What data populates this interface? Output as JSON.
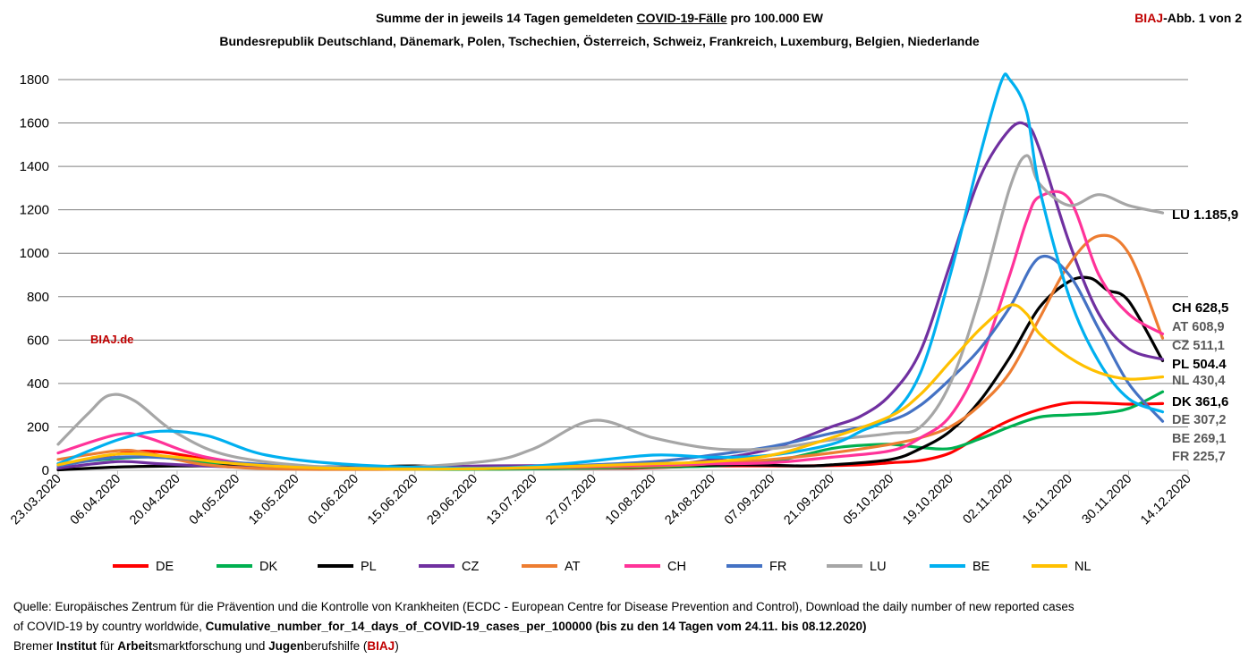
{
  "header": {
    "title_pre": "Summe der in jeweils 14 Tagen gemeldeten ",
    "title_underlined": "COVID-19-Fälle",
    "title_post": " pro 100.000 EW",
    "subtitle": "Bundesrepublik Deutschland, Dänemark, Polen, Tschechien, Österreich, Schweiz, Frankreich, Luxemburg, Belgien, Niederlande",
    "abb_brand": "BIAJ",
    "abb_text": "-Abb. 1 von 2",
    "watermark": "BIAJ.de"
  },
  "colors": {
    "DE": "#ff0000",
    "DK": "#00b050",
    "PL": "#000000",
    "CZ": "#7030a0",
    "AT": "#ed7d31",
    "CH": "#ff3399",
    "FR": "#4472c4",
    "LU": "#a6a6a6",
    "BE": "#00b0f0",
    "NL": "#ffc000",
    "brand": "#c00000"
  },
  "chart_data": {
    "type": "line",
    "title": "Summe der in jeweils 14 Tagen gemeldeten COVID-19-Fälle pro 100.000 EW",
    "xlabel": "",
    "ylabel": "",
    "ylim": [
      0,
      1800
    ],
    "yticks": [
      0,
      200,
      400,
      600,
      800,
      1000,
      1200,
      1400,
      1600,
      1800
    ],
    "xlim": [
      "2020-03-23",
      "2020-12-14"
    ],
    "xticks": [
      "23.03.2020",
      "06.04.2020",
      "20.04.2020",
      "04.05.2020",
      "18.05.2020",
      "01.06.2020",
      "15.06.2020",
      "29.06.2020",
      "13.07.2020",
      "27.07.2020",
      "10.08.2020",
      "24.08.2020",
      "07.09.2020",
      "21.09.2020",
      "05.10.2020",
      "19.10.2020",
      "02.11.2020",
      "16.11.2020",
      "30.11.2020",
      "14.12.2020"
    ],
    "grid": true,
    "legend_position": "bottom",
    "series": [
      {
        "name": "DE",
        "points": [
          [
            "2020-03-23",
            25
          ],
          [
            "2020-04-06",
            75
          ],
          [
            "2020-04-16",
            85
          ],
          [
            "2020-05-04",
            30
          ],
          [
            "2020-05-25",
            10
          ],
          [
            "2020-07-01",
            8
          ],
          [
            "2020-08-05",
            10
          ],
          [
            "2020-08-24",
            20
          ],
          [
            "2020-09-14",
            20
          ],
          [
            "2020-09-28",
            25
          ],
          [
            "2020-10-05",
            35
          ],
          [
            "2020-10-12",
            45
          ],
          [
            "2020-10-19",
            80
          ],
          [
            "2020-10-26",
            160
          ],
          [
            "2020-11-02",
            230
          ],
          [
            "2020-11-09",
            280
          ],
          [
            "2020-11-16",
            310
          ],
          [
            "2020-11-23",
            310
          ],
          [
            "2020-11-30",
            305
          ],
          [
            "2020-12-08",
            307.2
          ]
        ]
      },
      {
        "name": "DK",
        "points": [
          [
            "2020-03-23",
            30
          ],
          [
            "2020-04-06",
            55
          ],
          [
            "2020-04-16",
            60
          ],
          [
            "2020-04-27",
            35
          ],
          [
            "2020-05-18",
            10
          ],
          [
            "2020-07-01",
            5
          ],
          [
            "2020-08-10",
            15
          ],
          [
            "2020-08-24",
            20
          ],
          [
            "2020-09-07",
            40
          ],
          [
            "2020-09-21",
            100
          ],
          [
            "2020-09-28",
            115
          ],
          [
            "2020-10-05",
            120
          ],
          [
            "2020-10-12",
            105
          ],
          [
            "2020-10-19",
            100
          ],
          [
            "2020-10-26",
            145
          ],
          [
            "2020-11-02",
            200
          ],
          [
            "2020-11-09",
            245
          ],
          [
            "2020-11-16",
            255
          ],
          [
            "2020-11-23",
            262
          ],
          [
            "2020-11-30",
            285
          ],
          [
            "2020-12-08",
            361.6
          ]
        ]
      },
      {
        "name": "PL",
        "points": [
          [
            "2020-03-23",
            2
          ],
          [
            "2020-04-06",
            15
          ],
          [
            "2020-04-20",
            20
          ],
          [
            "2020-05-10",
            20
          ],
          [
            "2020-05-31",
            15
          ],
          [
            "2020-06-15",
            20
          ],
          [
            "2020-07-01",
            10
          ],
          [
            "2020-08-10",
            20
          ],
          [
            "2020-08-31",
            25
          ],
          [
            "2020-09-14",
            20
          ],
          [
            "2020-09-21",
            25
          ],
          [
            "2020-10-05",
            50
          ],
          [
            "2020-10-12",
            100
          ],
          [
            "2020-10-19",
            180
          ],
          [
            "2020-10-26",
            320
          ],
          [
            "2020-11-02",
            520
          ],
          [
            "2020-11-09",
            750
          ],
          [
            "2020-11-16",
            870
          ],
          [
            "2020-11-21",
            885
          ],
          [
            "2020-11-25",
            830
          ],
          [
            "2020-11-30",
            780
          ],
          [
            "2020-12-08",
            504.4
          ]
        ]
      },
      {
        "name": "CZ",
        "points": [
          [
            "2020-03-23",
            10
          ],
          [
            "2020-04-06",
            40
          ],
          [
            "2020-04-16",
            30
          ],
          [
            "2020-05-04",
            15
          ],
          [
            "2020-06-01",
            10
          ],
          [
            "2020-07-01",
            20
          ],
          [
            "2020-08-10",
            25
          ],
          [
            "2020-08-24",
            50
          ],
          [
            "2020-09-07",
            100
          ],
          [
            "2020-09-21",
            200
          ],
          [
            "2020-09-28",
            250
          ],
          [
            "2020-10-05",
            350
          ],
          [
            "2020-10-12",
            550
          ],
          [
            "2020-10-19",
            950
          ],
          [
            "2020-10-26",
            1350
          ],
          [
            "2020-11-02",
            1570
          ],
          [
            "2020-11-06",
            1590
          ],
          [
            "2020-11-09",
            1480
          ],
          [
            "2020-11-16",
            1050
          ],
          [
            "2020-11-23",
            720
          ],
          [
            "2020-11-30",
            560
          ],
          [
            "2020-12-08",
            511.1
          ]
        ]
      },
      {
        "name": "AT",
        "points": [
          [
            "2020-03-23",
            50
          ],
          [
            "2020-04-06",
            90
          ],
          [
            "2020-04-13",
            80
          ],
          [
            "2020-04-27",
            25
          ],
          [
            "2020-05-18",
            5
          ],
          [
            "2020-07-01",
            8
          ],
          [
            "2020-08-10",
            20
          ],
          [
            "2020-08-24",
            30
          ],
          [
            "2020-09-07",
            50
          ],
          [
            "2020-09-21",
            80
          ],
          [
            "2020-10-05",
            120
          ],
          [
            "2020-10-12",
            150
          ],
          [
            "2020-10-19",
            200
          ],
          [
            "2020-10-26",
            300
          ],
          [
            "2020-11-02",
            450
          ],
          [
            "2020-11-09",
            700
          ],
          [
            "2020-11-16",
            950
          ],
          [
            "2020-11-23",
            1080
          ],
          [
            "2020-11-30",
            1000
          ],
          [
            "2020-12-08",
            608.9
          ]
        ]
      },
      {
        "name": "CH",
        "points": [
          [
            "2020-03-23",
            80
          ],
          [
            "2020-04-06",
            165
          ],
          [
            "2020-04-13",
            150
          ],
          [
            "2020-04-27",
            60
          ],
          [
            "2020-05-18",
            15
          ],
          [
            "2020-07-01",
            10
          ],
          [
            "2020-08-10",
            25
          ],
          [
            "2020-08-24",
            30
          ],
          [
            "2020-09-07",
            35
          ],
          [
            "2020-09-21",
            60
          ],
          [
            "2020-10-05",
            90
          ],
          [
            "2020-10-12",
            150
          ],
          [
            "2020-10-19",
            250
          ],
          [
            "2020-10-26",
            500
          ],
          [
            "2020-11-02",
            900
          ],
          [
            "2020-11-06",
            1150
          ],
          [
            "2020-11-09",
            1260
          ],
          [
            "2020-11-16",
            1250
          ],
          [
            "2020-11-23",
            900
          ],
          [
            "2020-11-30",
            720
          ],
          [
            "2020-12-08",
            628.5
          ]
        ]
      },
      {
        "name": "FR",
        "points": [
          [
            "2020-03-23",
            20
          ],
          [
            "2020-04-06",
            60
          ],
          [
            "2020-04-20",
            55
          ],
          [
            "2020-05-04",
            35
          ],
          [
            "2020-05-25",
            15
          ],
          [
            "2020-07-01",
            10
          ],
          [
            "2020-07-20",
            20
          ],
          [
            "2020-08-10",
            40
          ],
          [
            "2020-08-24",
            70
          ],
          [
            "2020-09-07",
            110
          ],
          [
            "2020-09-21",
            170
          ],
          [
            "2020-10-05",
            230
          ],
          [
            "2020-10-12",
            300
          ],
          [
            "2020-10-19",
            420
          ],
          [
            "2020-10-26",
            560
          ],
          [
            "2020-11-02",
            750
          ],
          [
            "2020-11-09",
            980
          ],
          [
            "2020-11-16",
            900
          ],
          [
            "2020-11-23",
            650
          ],
          [
            "2020-11-30",
            400
          ],
          [
            "2020-12-08",
            225.7
          ]
        ]
      },
      {
        "name": "LU",
        "points": [
          [
            "2020-03-23",
            120
          ],
          [
            "2020-03-30",
            260
          ],
          [
            "2020-04-04",
            345
          ],
          [
            "2020-04-10",
            320
          ],
          [
            "2020-04-20",
            170
          ],
          [
            "2020-05-04",
            60
          ],
          [
            "2020-06-01",
            10
          ],
          [
            "2020-07-01",
            40
          ],
          [
            "2020-07-13",
            100
          ],
          [
            "2020-07-27",
            230
          ],
          [
            "2020-08-10",
            150
          ],
          [
            "2020-08-24",
            100
          ],
          [
            "2020-09-07",
            100
          ],
          [
            "2020-09-21",
            140
          ],
          [
            "2020-10-05",
            170
          ],
          [
            "2020-10-12",
            200
          ],
          [
            "2020-10-19",
            400
          ],
          [
            "2020-10-26",
            800
          ],
          [
            "2020-11-02",
            1300
          ],
          [
            "2020-11-06",
            1450
          ],
          [
            "2020-11-09",
            1320
          ],
          [
            "2020-11-16",
            1220
          ],
          [
            "2020-11-23",
            1270
          ],
          [
            "2020-11-30",
            1220
          ],
          [
            "2020-12-08",
            1185.9
          ]
        ]
      },
      {
        "name": "BE",
        "points": [
          [
            "2020-03-23",
            30
          ],
          [
            "2020-04-06",
            140
          ],
          [
            "2020-04-16",
            180
          ],
          [
            "2020-04-27",
            160
          ],
          [
            "2020-05-11",
            70
          ],
          [
            "2020-06-01",
            25
          ],
          [
            "2020-07-01",
            10
          ],
          [
            "2020-07-20",
            30
          ],
          [
            "2020-08-10",
            70
          ],
          [
            "2020-08-24",
            60
          ],
          [
            "2020-09-07",
            70
          ],
          [
            "2020-09-21",
            120
          ],
          [
            "2020-09-28",
            180
          ],
          [
            "2020-10-05",
            250
          ],
          [
            "2020-10-12",
            450
          ],
          [
            "2020-10-19",
            900
          ],
          [
            "2020-10-26",
            1450
          ],
          [
            "2020-10-31",
            1790
          ],
          [
            "2020-11-02",
            1800
          ],
          [
            "2020-11-06",
            1650
          ],
          [
            "2020-11-09",
            1300
          ],
          [
            "2020-11-16",
            800
          ],
          [
            "2020-11-23",
            500
          ],
          [
            "2020-11-30",
            330
          ],
          [
            "2020-12-08",
            269.1
          ]
        ]
      },
      {
        "name": "NL",
        "points": [
          [
            "2020-03-23",
            25
          ],
          [
            "2020-04-06",
            75
          ],
          [
            "2020-04-20",
            60
          ],
          [
            "2020-05-04",
            30
          ],
          [
            "2020-05-25",
            10
          ],
          [
            "2020-07-01",
            8
          ],
          [
            "2020-08-10",
            30
          ],
          [
            "2020-08-24",
            40
          ],
          [
            "2020-09-07",
            70
          ],
          [
            "2020-09-21",
            150
          ],
          [
            "2020-10-05",
            250
          ],
          [
            "2020-10-12",
            350
          ],
          [
            "2020-10-19",
            500
          ],
          [
            "2020-10-26",
            650
          ],
          [
            "2020-11-02",
            760
          ],
          [
            "2020-11-06",
            720
          ],
          [
            "2020-11-09",
            630
          ],
          [
            "2020-11-16",
            520
          ],
          [
            "2020-11-23",
            450
          ],
          [
            "2020-11-30",
            420
          ],
          [
            "2020-12-08",
            430.4
          ]
        ]
      }
    ],
    "annotations": [
      {
        "series": "LU",
        "text": "LU 1.185,9",
        "value": 1185.9
      },
      {
        "series": "CH",
        "text": "CH 628,5",
        "value": 628.5
      },
      {
        "series": "AT",
        "text": "AT 608,9",
        "value": 608.9
      },
      {
        "series": "CZ",
        "text": "CZ 511,1",
        "value": 511.1
      },
      {
        "series": "PL",
        "text": "PL 504.4",
        "value": 504.4
      },
      {
        "series": "NL",
        "text": "NL 430,4",
        "value": 430.4
      },
      {
        "series": "DK",
        "text": "DK 361,6",
        "value": 361.6
      },
      {
        "series": "DE",
        "text": "DE 307,2",
        "value": 307.2
      },
      {
        "series": "BE",
        "text": "BE 269,1",
        "value": 269.1
      },
      {
        "series": "FR",
        "text": "FR 225,7",
        "value": 225.7
      }
    ]
  },
  "footer": {
    "line1": "Quelle: Europäisches Zentrum für die Prävention und die Kontrolle von Krankheiten (ECDC - European Centre for Disease Prevention and Control), Download the daily number of new reported cases",
    "line2_pre": "of COVID-19 by country worldwide, ",
    "line2_bold": "Cumulative_number_for_14_days_of_COVID-19_cases_per_100000 (bis zu den 14 Tagen vom 24.11. bis 08.12.2020)",
    "line3_a": "Bremer ",
    "line3_b": "Institut",
    "line3_c": " für ",
    "line3_d": "Arbeit",
    "line3_e": "smarktforschung und ",
    "line3_f": "Jugen",
    "line3_g": "berufshilfe (",
    "line3_h": "BIAJ",
    "line3_i": ")"
  }
}
